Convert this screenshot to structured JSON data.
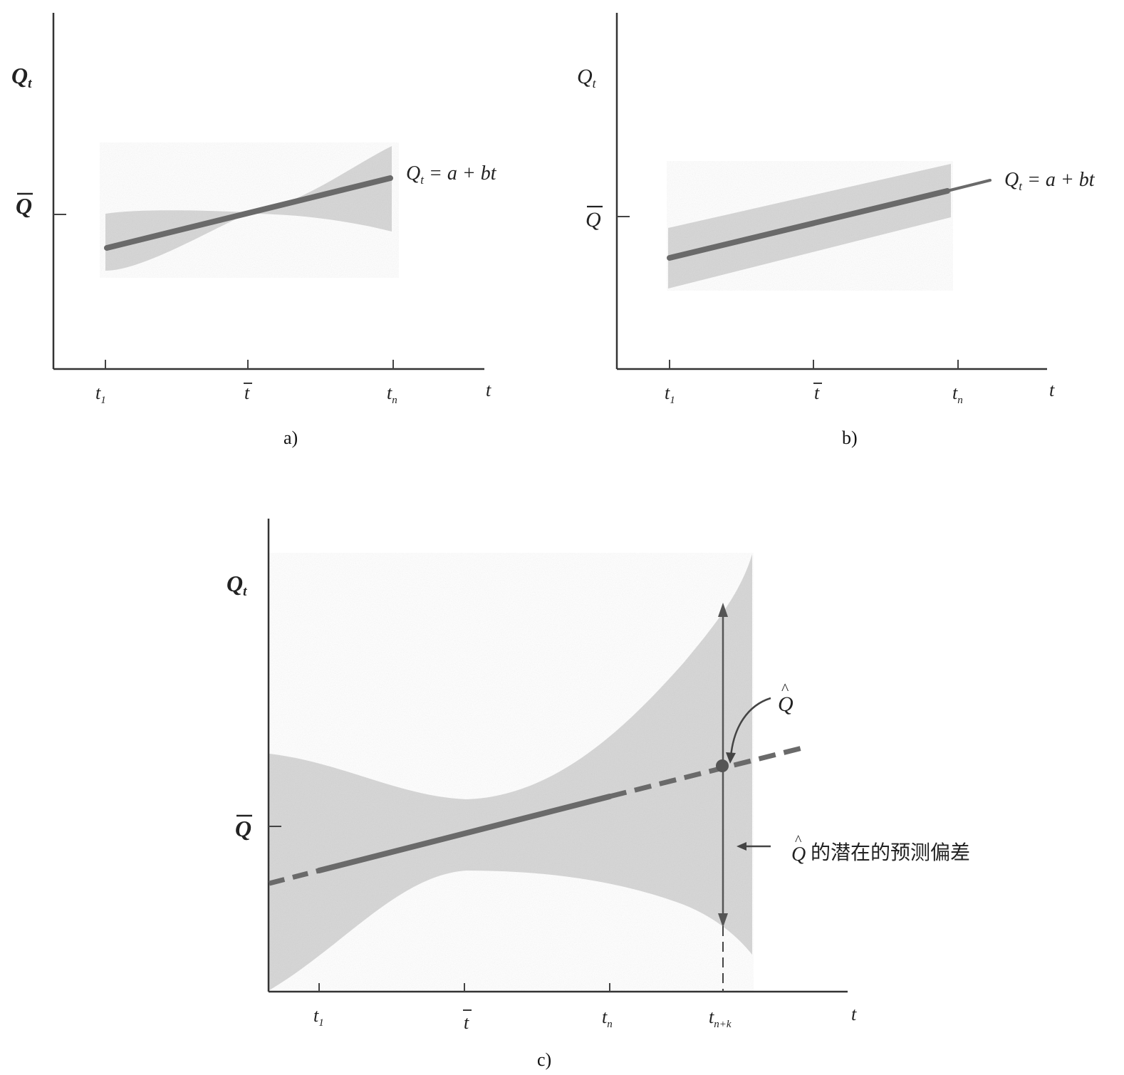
{
  "panel_a": {
    "y_label": "Q",
    "y_label_sub": "t",
    "q_bar_label": "Q",
    "x_ticks": [
      {
        "main": "t",
        "sub": "1"
      },
      {
        "main": "t",
        "sub": ""
      },
      {
        "main": "t",
        "sub": "n"
      }
    ],
    "x_label": "t",
    "equation": "Q",
    "equation_sub": "t",
    "equation_rest": " = a + bt",
    "caption": "a)"
  },
  "panel_b": {
    "y_label": "Q",
    "y_label_sub": "t",
    "q_bar_label": "Q",
    "x_ticks": [
      {
        "main": "t",
        "sub": "1"
      },
      {
        "main": "t",
        "sub": ""
      },
      {
        "main": "t",
        "sub": "n"
      }
    ],
    "x_label": "t",
    "equation": "Q",
    "equation_sub": "t",
    "equation_rest": " = a + bt",
    "caption": "b)"
  },
  "panel_c": {
    "y_label": "Q",
    "y_label_sub": "t",
    "q_bar_label": "Q",
    "x_ticks": [
      {
        "main": "t",
        "sub": "1"
      },
      {
        "main": "t",
        "sub": ""
      },
      {
        "main": "t",
        "sub": "n"
      },
      {
        "main": "t",
        "sub": "n+k"
      }
    ],
    "x_label": "t",
    "q_hat_label": "Q",
    "error_label_q": "Q",
    "error_label_text": "的潜在的预测偏差",
    "caption": "c)"
  }
}
